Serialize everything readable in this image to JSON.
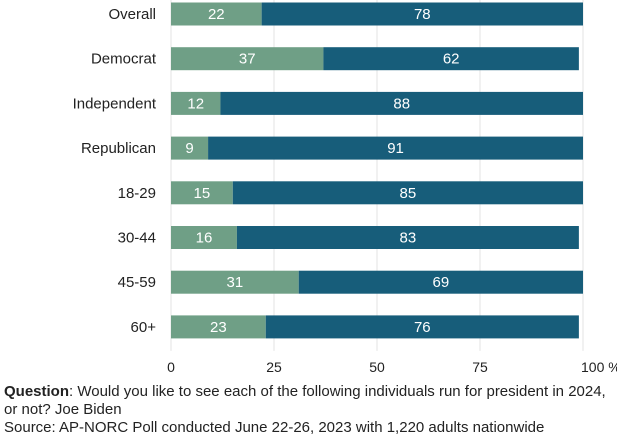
{
  "chart_data": {
    "type": "bar",
    "orientation": "horizontal",
    "stacked": true,
    "categories": [
      "Overall",
      "Democrat",
      "Independent",
      "Republican",
      "18-29",
      "30-44",
      "45-59",
      "60+"
    ],
    "series": [
      {
        "values": [
          22,
          37,
          12,
          9,
          15,
          16,
          31,
          23
        ],
        "color": "#6f9f86"
      },
      {
        "values": [
          78,
          62,
          88,
          91,
          85,
          83,
          69,
          76
        ],
        "color": "#175d7a"
      }
    ],
    "xlim": [
      0,
      100
    ],
    "xticks": [
      "0",
      "25",
      "50",
      "75",
      "100 %"
    ],
    "grid": true,
    "legend": "none"
  },
  "footnote": {
    "question_label": "Question",
    "question_text": ": Would you like to see each of the following individuals run for president in 2024, or not? Joe Biden"
  },
  "source_text": "Source: AP-NORC Poll conducted June 22-26, 2023 with 1,220 adults nationwide"
}
